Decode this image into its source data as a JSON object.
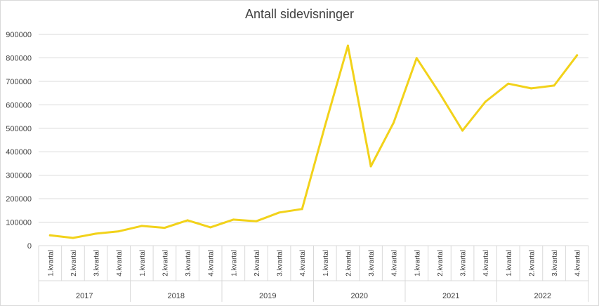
{
  "chart_data": {
    "type": "line",
    "title": "Antall sidevisninger",
    "xlabel": "",
    "ylabel": "",
    "ylim": [
      0,
      900000
    ],
    "yticks": [
      0,
      100000,
      200000,
      300000,
      400000,
      500000,
      600000,
      700000,
      800000,
      900000
    ],
    "ytick_labels": [
      "0",
      "100000",
      "200000",
      "300000",
      "400000",
      "500000",
      "600000",
      "700000",
      "800000",
      "900000"
    ],
    "grid": true,
    "legend": "none",
    "line_color": "#f2d21a",
    "groups": [
      {
        "year": "2017",
        "quarters": [
          "1.kvartal",
          "2.kvartal",
          "3.kvartal",
          "4.kvartal"
        ]
      },
      {
        "year": "2018",
        "quarters": [
          "1.kvartal",
          "2.kvartal",
          "3.kvartal",
          "4.kvartal"
        ]
      },
      {
        "year": "2019",
        "quarters": [
          "1.kvartal",
          "2.kvartal",
          "3.kvartal",
          "4.kvartal"
        ]
      },
      {
        "year": "2020",
        "quarters": [
          "1.kvartal",
          "2.kvartal",
          "3.kvartal",
          "4.kvartal"
        ]
      },
      {
        "year": "2021",
        "quarters": [
          "1.kvartal",
          "2.kvartal",
          "3.kvartal",
          "4.kvartal"
        ]
      },
      {
        "year": "2022",
        "quarters": [
          "1.kvartal",
          "2.kvartal",
          "3.kvartal",
          "4.kvartal"
        ]
      }
    ],
    "values": [
      44000,
      33000,
      51000,
      61000,
      84000,
      76000,
      108000,
      78000,
      111000,
      104000,
      141000,
      156000,
      510000,
      852000,
      338000,
      525000,
      799000,
      650000,
      490000,
      613000,
      690000,
      670000,
      682000,
      811000
    ]
  }
}
